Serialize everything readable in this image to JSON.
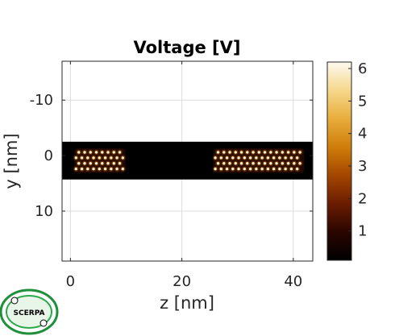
{
  "chart_data": {
    "type": "heatmap",
    "title": "Voltage [V]",
    "xlabel": "z [nm]",
    "ylabel": "y [nm]",
    "xlim": [
      -1.5,
      43.5
    ],
    "ylim": [
      -17,
      19
    ],
    "y_direction": "reversed",
    "grid": true,
    "x_ticks": [
      0,
      20,
      40
    ],
    "y_ticks": [
      -10,
      0,
      10
    ],
    "colorbar": {
      "range": [
        0.1,
        6.2
      ],
      "ticks": [
        1,
        2,
        3,
        4,
        5,
        6
      ],
      "colormap": [
        "#000000",
        "#2a0600",
        "#6b1c00",
        "#a44600",
        "#cf7d0a",
        "#e8ad3c",
        "#f6d88c",
        "#fdf8f0"
      ]
    },
    "region": {
      "z_range": [
        -1.5,
        43.5
      ],
      "y_range": [
        -2.5,
        4.3
      ],
      "background_value": 0.1
    },
    "clusters": [
      {
        "name": "left-molecules",
        "z_range": [
          1.0,
          9.6
        ],
        "rows": [
          {
            "y": -0.6,
            "z_start": 1.5,
            "count": 8
          },
          {
            "y": 0.4,
            "z_start": 1.0,
            "count": 9
          },
          {
            "y": 1.4,
            "z_start": 1.5,
            "count": 8
          },
          {
            "y": 2.4,
            "z_start": 1.0,
            "count": 9
          }
        ],
        "spacing": 1.05,
        "peak_value": 6.0,
        "glow_value": 3.0
      },
      {
        "name": "right-molecules",
        "z_range": [
          26.0,
          41.7
        ],
        "rows": [
          {
            "y": -0.6,
            "z_start": 26.5,
            "count": 15
          },
          {
            "y": 0.4,
            "z_start": 26.0,
            "count": 15
          },
          {
            "y": 1.4,
            "z_start": 26.5,
            "count": 15
          },
          {
            "y": 2.4,
            "z_start": 26.0,
            "count": 15
          }
        ],
        "spacing": 1.05,
        "peak_value": 6.0,
        "glow_value": 3.0
      }
    ]
  },
  "logo": {
    "text": "SCERPA",
    "accent": "#2aa84a"
  }
}
